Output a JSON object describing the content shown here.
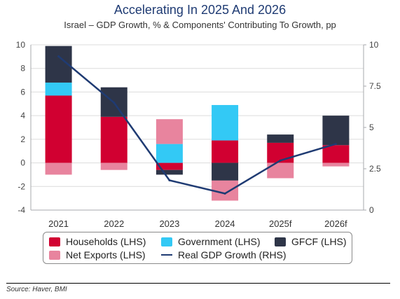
{
  "title": "Accelerating In 2025 And 2026",
  "subtitle": "Israel – GDP Growth, % & Components' Contributing To Growth, pp",
  "source": "Source: Haver, BMI",
  "colors": {
    "households": "#d10031",
    "government": "#33c9f5",
    "gfcf": "#2e3548",
    "net_exports": "#e8849e",
    "gdp_line": "#1f3b73",
    "axis": "#a7a9ac",
    "grid": "#dcdcdc"
  },
  "legend": [
    {
      "key": "households",
      "label": "Households (LHS)",
      "kind": "box"
    },
    {
      "key": "government",
      "label": "Government (LHS)",
      "kind": "box"
    },
    {
      "key": "gfcf",
      "label": "GFCF (LHS)",
      "kind": "box"
    },
    {
      "key": "net_exports",
      "label": "Net Exports (LHS)",
      "kind": "box"
    },
    {
      "key": "gdp_line",
      "label": "Real GDP Growth (RHS)",
      "kind": "line"
    }
  ],
  "chart_data": {
    "type": "bar",
    "stacked": true,
    "title": "Accelerating In 2025 And 2026",
    "subtitle": "Israel – GDP Growth, % & Components' Contributing To Growth, pp",
    "categories": [
      "2021",
      "2022",
      "2023",
      "2024",
      "2025f",
      "2026f"
    ],
    "ylim": [
      -4,
      10
    ],
    "yticks": [
      "-4",
      "-2",
      "0",
      "2",
      "4",
      "6",
      "8",
      "10"
    ],
    "y2lim": [
      0,
      10
    ],
    "y2ticks": [
      "0",
      "2.5",
      "5",
      "7.5",
      "10"
    ],
    "grid": true,
    "legend_position": "bottom",
    "series": [
      {
        "name": "Households (LHS)",
        "key": "households",
        "axis": "left",
        "values": [
          5.7,
          3.9,
          -0.6,
          1.9,
          1.7,
          1.5
        ]
      },
      {
        "name": "Government (LHS)",
        "key": "government",
        "axis": "left",
        "values": [
          1.1,
          0.0,
          1.6,
          3.0,
          0.0,
          0.0
        ]
      },
      {
        "name": "GFCF (LHS)",
        "key": "gfcf",
        "axis": "left",
        "values": [
          3.1,
          2.5,
          -0.4,
          -1.5,
          0.7,
          2.5
        ]
      },
      {
        "name": "Net Exports (LHS)",
        "key": "net_exports",
        "axis": "left",
        "values": [
          -1.0,
          -0.6,
          2.1,
          -1.7,
          -1.3,
          -0.3
        ]
      },
      {
        "name": "Real GDP Growth (RHS)",
        "key": "gdp_line",
        "axis": "right",
        "type": "line",
        "values": [
          9.3,
          6.5,
          1.8,
          1.0,
          3.0,
          4.0
        ]
      }
    ]
  }
}
